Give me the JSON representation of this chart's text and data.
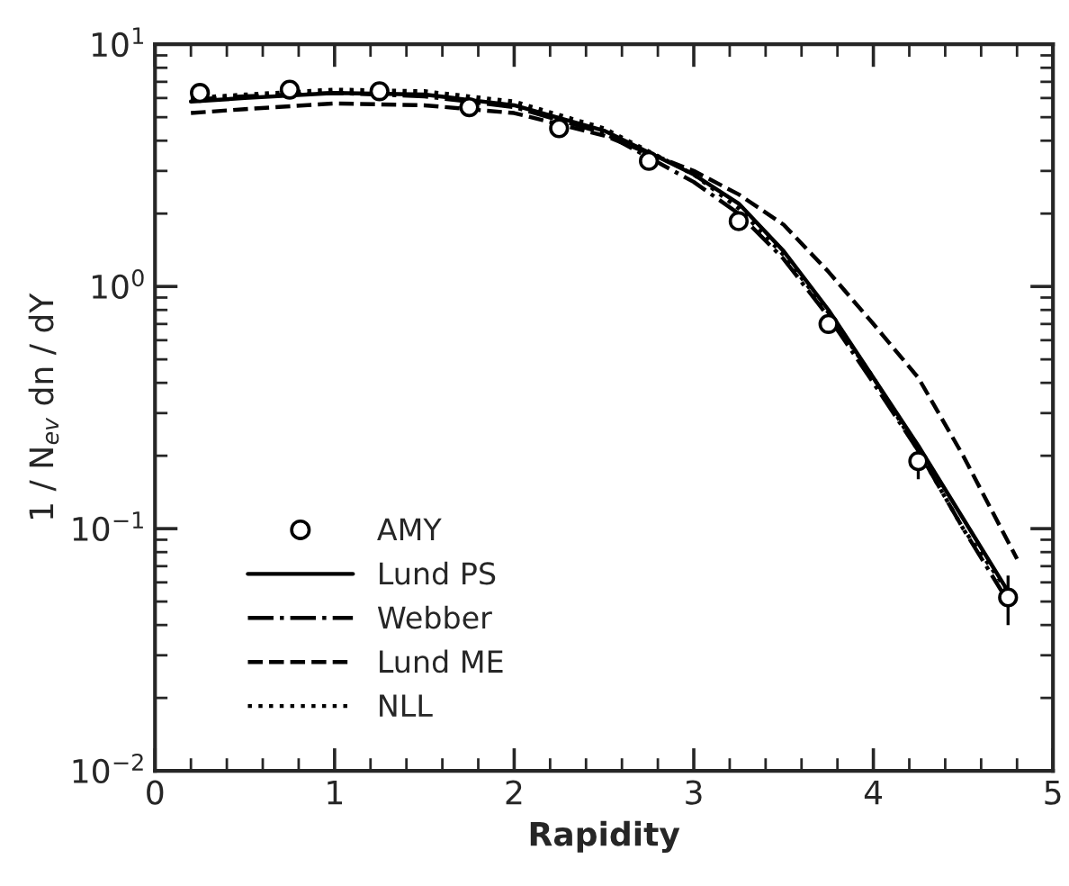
{
  "chart_data": {
    "type": "line",
    "xlabel": "Rapidity",
    "ylabel": "1 / N$_{ev}$ dn / dY",
    "xlim": [
      0,
      5
    ],
    "xticks": [
      0,
      1,
      2,
      3,
      4,
      5
    ],
    "ylim": [
      0.01,
      10
    ],
    "log": true,
    "yticks": [
      {
        "value": 0.01,
        "label": "10$^{−2}$"
      },
      {
        "value": 0.1,
        "label": "10$^{−1}$"
      },
      {
        "value": 1,
        "label": "10$^{0}$"
      },
      {
        "value": 10,
        "label": "10$^{1}$"
      }
    ],
    "grid": false,
    "legend": "bottom left",
    "series": [
      {
        "name": "AMY",
        "type": "scatter",
        "marker": "circle",
        "color": "#000000",
        "x": [
          0.25,
          0.75,
          1.25,
          1.75,
          2.25,
          2.75,
          3.25,
          3.75,
          4.25,
          4.75
        ],
        "values": [
          6.3,
          6.5,
          6.4,
          5.5,
          4.5,
          3.3,
          1.86,
          0.7,
          0.19,
          0.052
        ],
        "errors": [
          null,
          null,
          null,
          null,
          null,
          null,
          null,
          null,
          0.03,
          0.012
        ]
      },
      {
        "name": "Lund PS",
        "line_style": "solid",
        "color": "#000000",
        "x": [
          0.2,
          0.5,
          1.0,
          1.5,
          2.0,
          2.5,
          3.0,
          3.25,
          3.5,
          3.75,
          4.0,
          4.25,
          4.5,
          4.75
        ],
        "values": [
          5.8,
          6.0,
          6.3,
          6.2,
          5.6,
          4.4,
          2.9,
          2.2,
          1.4,
          0.8,
          0.42,
          0.22,
          0.11,
          0.055
        ]
      },
      {
        "name": "Webber",
        "line_style": "dashdot",
        "color": "#000000",
        "x": [
          0.2,
          0.5,
          1.0,
          1.5,
          2.0,
          2.5,
          3.0,
          3.25,
          3.5,
          3.75,
          4.0,
          4.25,
          4.5,
          4.75
        ],
        "values": [
          5.9,
          6.1,
          6.3,
          6.1,
          5.5,
          4.3,
          2.7,
          2.0,
          1.3,
          0.75,
          0.4,
          0.21,
          0.1,
          0.05
        ]
      },
      {
        "name": "Lund ME",
        "line_style": "dashed",
        "color": "#000000",
        "x": [
          0.2,
          0.5,
          1.0,
          1.5,
          2.0,
          2.5,
          3.0,
          3.25,
          3.5,
          3.75,
          4.0,
          4.25,
          4.5,
          4.8
        ],
        "values": [
          5.2,
          5.4,
          5.7,
          5.6,
          5.2,
          4.2,
          3.0,
          2.4,
          1.8,
          1.15,
          0.7,
          0.42,
          0.2,
          0.075
        ]
      },
      {
        "name": "NLL",
        "line_style": "dotted",
        "color": "#000000",
        "x": [
          0.2,
          0.5,
          1.0,
          1.5,
          2.0,
          2.5,
          3.0,
          3.25,
          3.5,
          3.75,
          4.0,
          4.25,
          4.5,
          4.75
        ],
        "values": [
          6.0,
          6.2,
          6.5,
          6.4,
          5.8,
          4.5,
          2.9,
          2.1,
          1.35,
          0.78,
          0.42,
          0.21,
          0.1,
          0.055
        ]
      }
    ]
  }
}
